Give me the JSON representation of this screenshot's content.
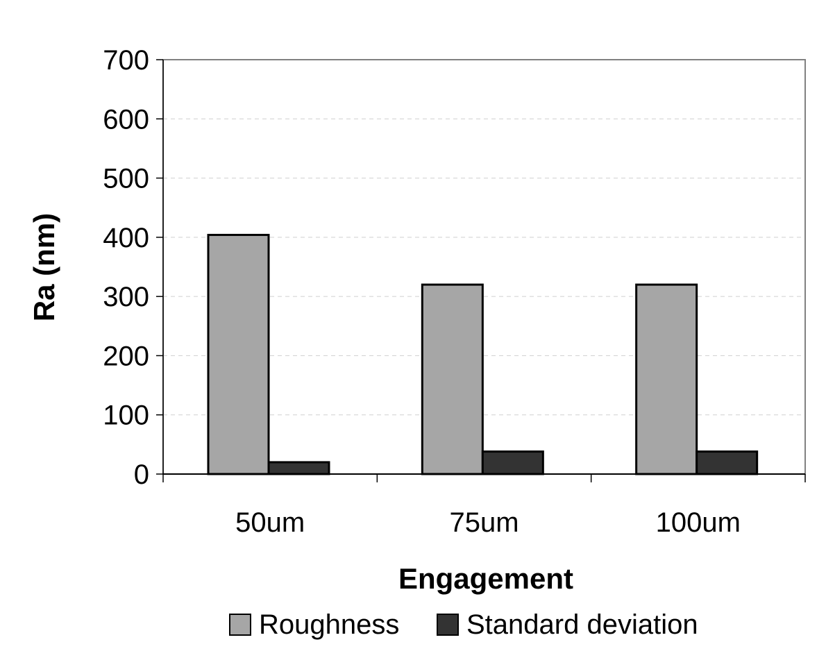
{
  "chart_data": {
    "type": "bar",
    "title": "",
    "xlabel": "Engagement",
    "ylabel": "Ra (nm)",
    "categories": [
      "50um",
      "75um",
      "100um"
    ],
    "series": [
      {
        "name": "Roughness",
        "values": [
          404,
          320,
          320
        ],
        "color": "#a6a6a6"
      },
      {
        "name": "Standard deviation",
        "values": [
          20,
          38,
          38
        ],
        "color": "#333333"
      }
    ],
    "ylim": [
      0,
      700
    ],
    "yticks": [
      0,
      100,
      200,
      300,
      400,
      500,
      600,
      700
    ],
    "grid": true,
    "legend_position": "bottom"
  }
}
